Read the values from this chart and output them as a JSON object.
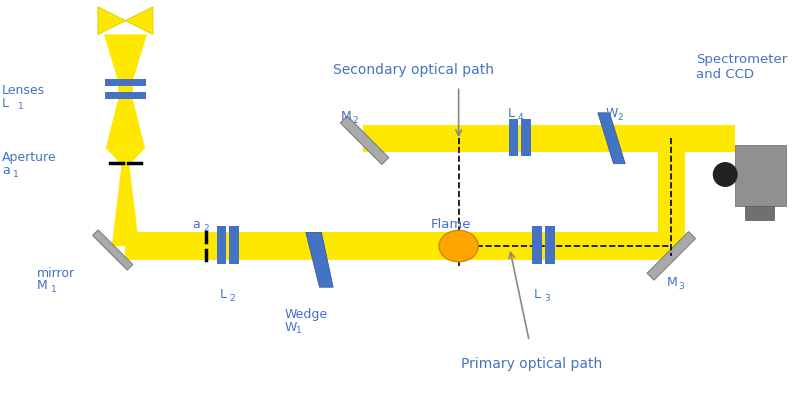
{
  "bg_color": "#ffffff",
  "yellow": "#FFE800",
  "yellow_dark": "#E6D200",
  "blue": "#4472C4",
  "blue_dark": "#2F5496",
  "gray": "#808080",
  "gray_light": "#A9A9A9",
  "gray_med": "#969696",
  "orange": "#FFA500",
  "black": "#000000",
  "text_color": "#4472C4",
  "text_color2": "#5B5EA6",
  "label_lenses": "Lenses\nL",
  "label_lenses_sub": "1",
  "label_aperture": "Aperture\na",
  "label_aperture_sub": "1",
  "label_mirror": "mirror\nM",
  "label_mirror_sub": "1",
  "label_a2": "a",
  "label_a2_sub": "2",
  "label_L2": "L",
  "label_L2_sub": "2",
  "label_wedge": "Wedge\nW",
  "label_wedge_sub": "1",
  "label_flame": "Flame",
  "label_L3": "L",
  "label_L3_sub": "3",
  "label_M2": "M",
  "label_M2_sub": "2",
  "label_L4": "L",
  "label_L4_sub": "4",
  "label_W2": "W",
  "label_W2_sub": "2",
  "label_M3": "M",
  "label_M3_sub": "3",
  "label_secondary": "Secondary optical path",
  "label_primary": "Primary optical path",
  "label_spectrometer": "Spectrometer\nand CCD"
}
